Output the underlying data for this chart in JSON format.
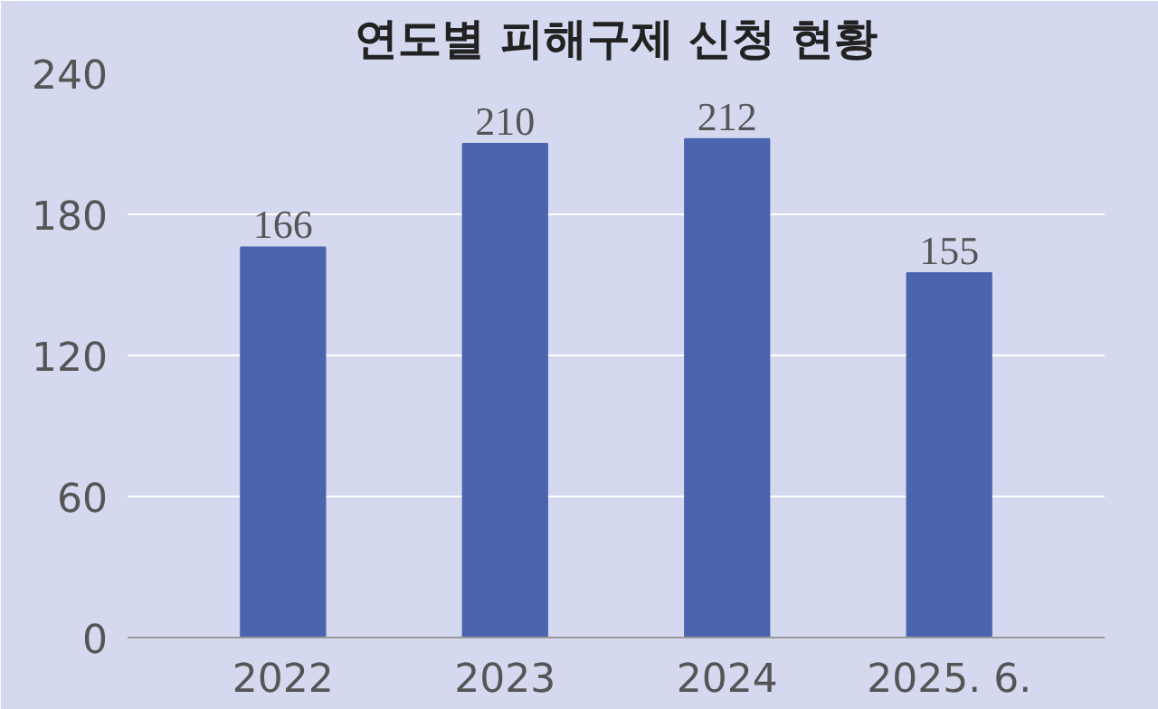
{
  "chart_data": {
    "type": "bar",
    "title": "연도별 피해구제 신청 현황",
    "categories": [
      "2022",
      "2023",
      "2024",
      "2025. 6."
    ],
    "values": [
      166,
      210,
      212,
      155
    ],
    "color": "#4a64ae",
    "ylim": [
      0,
      240
    ],
    "yticks": [
      0,
      60,
      120,
      180,
      240
    ],
    "grid": "y",
    "data_labels": true
  }
}
